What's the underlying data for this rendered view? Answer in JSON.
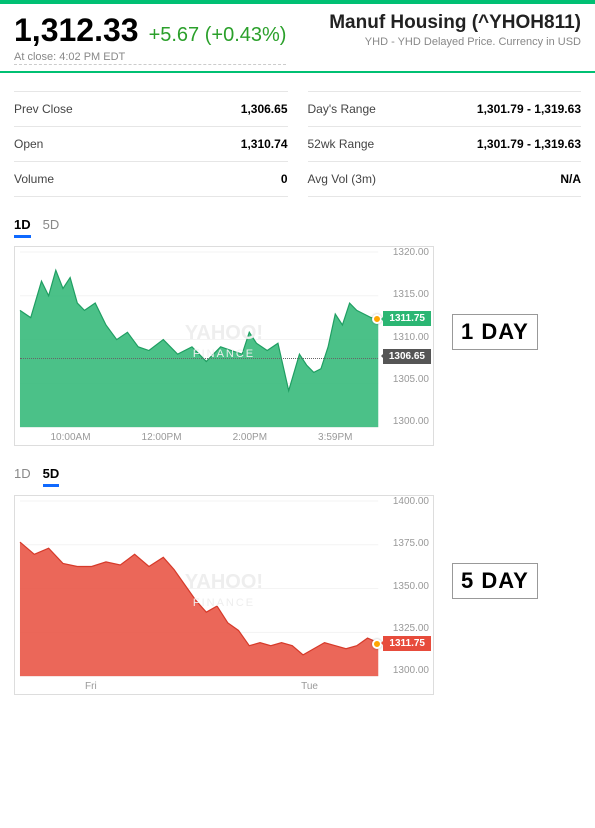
{
  "header": {
    "price": "1,312.33",
    "change": "+5.67",
    "change_pct": "(+0.43%)",
    "close_time": "At close: 4:02 PM EDT",
    "title": "Manuf Housing (^YHOH811)",
    "subtitle": "YHD - YHD Delayed Price. Currency in USD",
    "price_color": "#000000",
    "change_color": "#2ba02b",
    "accent_bar_color": "#00c073"
  },
  "stats": {
    "left": [
      {
        "label": "Prev Close",
        "value": "1,306.65"
      },
      {
        "label": "Open",
        "value": "1,310.74"
      },
      {
        "label": "Volume",
        "value": "0"
      }
    ],
    "right": [
      {
        "label": "Day's Range",
        "value": "1,301.79 - 1,319.63"
      },
      {
        "label": "52wk Range",
        "value": "1,301.79 - 1,319.63"
      },
      {
        "label": "Avg Vol (3m)",
        "value": "N/A"
      }
    ]
  },
  "chart1": {
    "type": "area",
    "tabs": [
      "1D",
      "5D"
    ],
    "active_tab": "1D",
    "badge": "1 DAY",
    "xlim": [
      0,
      1
    ],
    "ylim": [
      1297,
      1321
    ],
    "y_ticks": [
      "1320.00",
      "1315.00",
      "1310.00",
      "1305.00",
      "1300.00"
    ],
    "x_ticks": [
      "10:00AM",
      "12:00PM",
      "2:00PM",
      "3:59PM"
    ],
    "fill_color": "#2bb673",
    "stroke_color": "#1f9e62",
    "background_color": "#ffffff",
    "grid_color": "#f3f3f3",
    "prev_close_line": 1306.65,
    "current_value": "1311.75",
    "prev_close_label": "1306.65",
    "series_x": [
      0,
      0.03,
      0.06,
      0.08,
      0.1,
      0.12,
      0.14,
      0.16,
      0.18,
      0.21,
      0.24,
      0.27,
      0.3,
      0.33,
      0.36,
      0.4,
      0.44,
      0.48,
      0.52,
      0.56,
      0.59,
      0.62,
      0.64,
      0.66,
      0.69,
      0.72,
      0.75,
      0.78,
      0.8,
      0.82,
      0.84,
      0.86,
      0.88,
      0.9,
      0.92,
      0.94,
      0.96,
      0.98,
      1.0
    ],
    "series_y": [
      1313,
      1312,
      1317,
      1315,
      1318.5,
      1316,
      1317.5,
      1314,
      1313,
      1314,
      1311,
      1309,
      1310,
      1308,
      1307.5,
      1309,
      1307,
      1308,
      1306,
      1308,
      1307.5,
      1307,
      1310,
      1308.5,
      1307.5,
      1308.5,
      1302,
      1307,
      1305.5,
      1304.5,
      1305,
      1308,
      1312.5,
      1311,
      1314,
      1313,
      1312.5,
      1312,
      1312
    ]
  },
  "chart2": {
    "type": "area",
    "tabs": [
      "1D",
      "5D"
    ],
    "active_tab": "5D",
    "badge": "5 DAY",
    "xlim": [
      0,
      1
    ],
    "ylim": [
      1290,
      1405
    ],
    "y_ticks": [
      "1400.00",
      "1375.00",
      "1350.00",
      "1325.00",
      "1300.00"
    ],
    "x_ticks": [
      "Fri",
      "Tue"
    ],
    "fill_color": "#e74c3c",
    "stroke_color": "#d63a2a",
    "background_color": "#ffffff",
    "grid_color": "#f3f3f3",
    "current_value": "1311.75",
    "series_x": [
      0,
      0.04,
      0.08,
      0.12,
      0.16,
      0.2,
      0.24,
      0.28,
      0.32,
      0.36,
      0.4,
      0.43,
      0.46,
      0.49,
      0.52,
      0.55,
      0.58,
      0.61,
      0.64,
      0.67,
      0.7,
      0.73,
      0.76,
      0.79,
      0.82,
      0.85,
      0.88,
      0.91,
      0.94,
      0.97,
      1.0
    ],
    "series_y": [
      1378,
      1370,
      1374,
      1364,
      1362,
      1362,
      1365,
      1363,
      1370,
      1362,
      1368,
      1360,
      1350,
      1340,
      1332,
      1336,
      1325,
      1320,
      1310,
      1312,
      1310,
      1312,
      1310,
      1304,
      1308,
      1312,
      1310,
      1308,
      1310,
      1315,
      1312
    ]
  }
}
